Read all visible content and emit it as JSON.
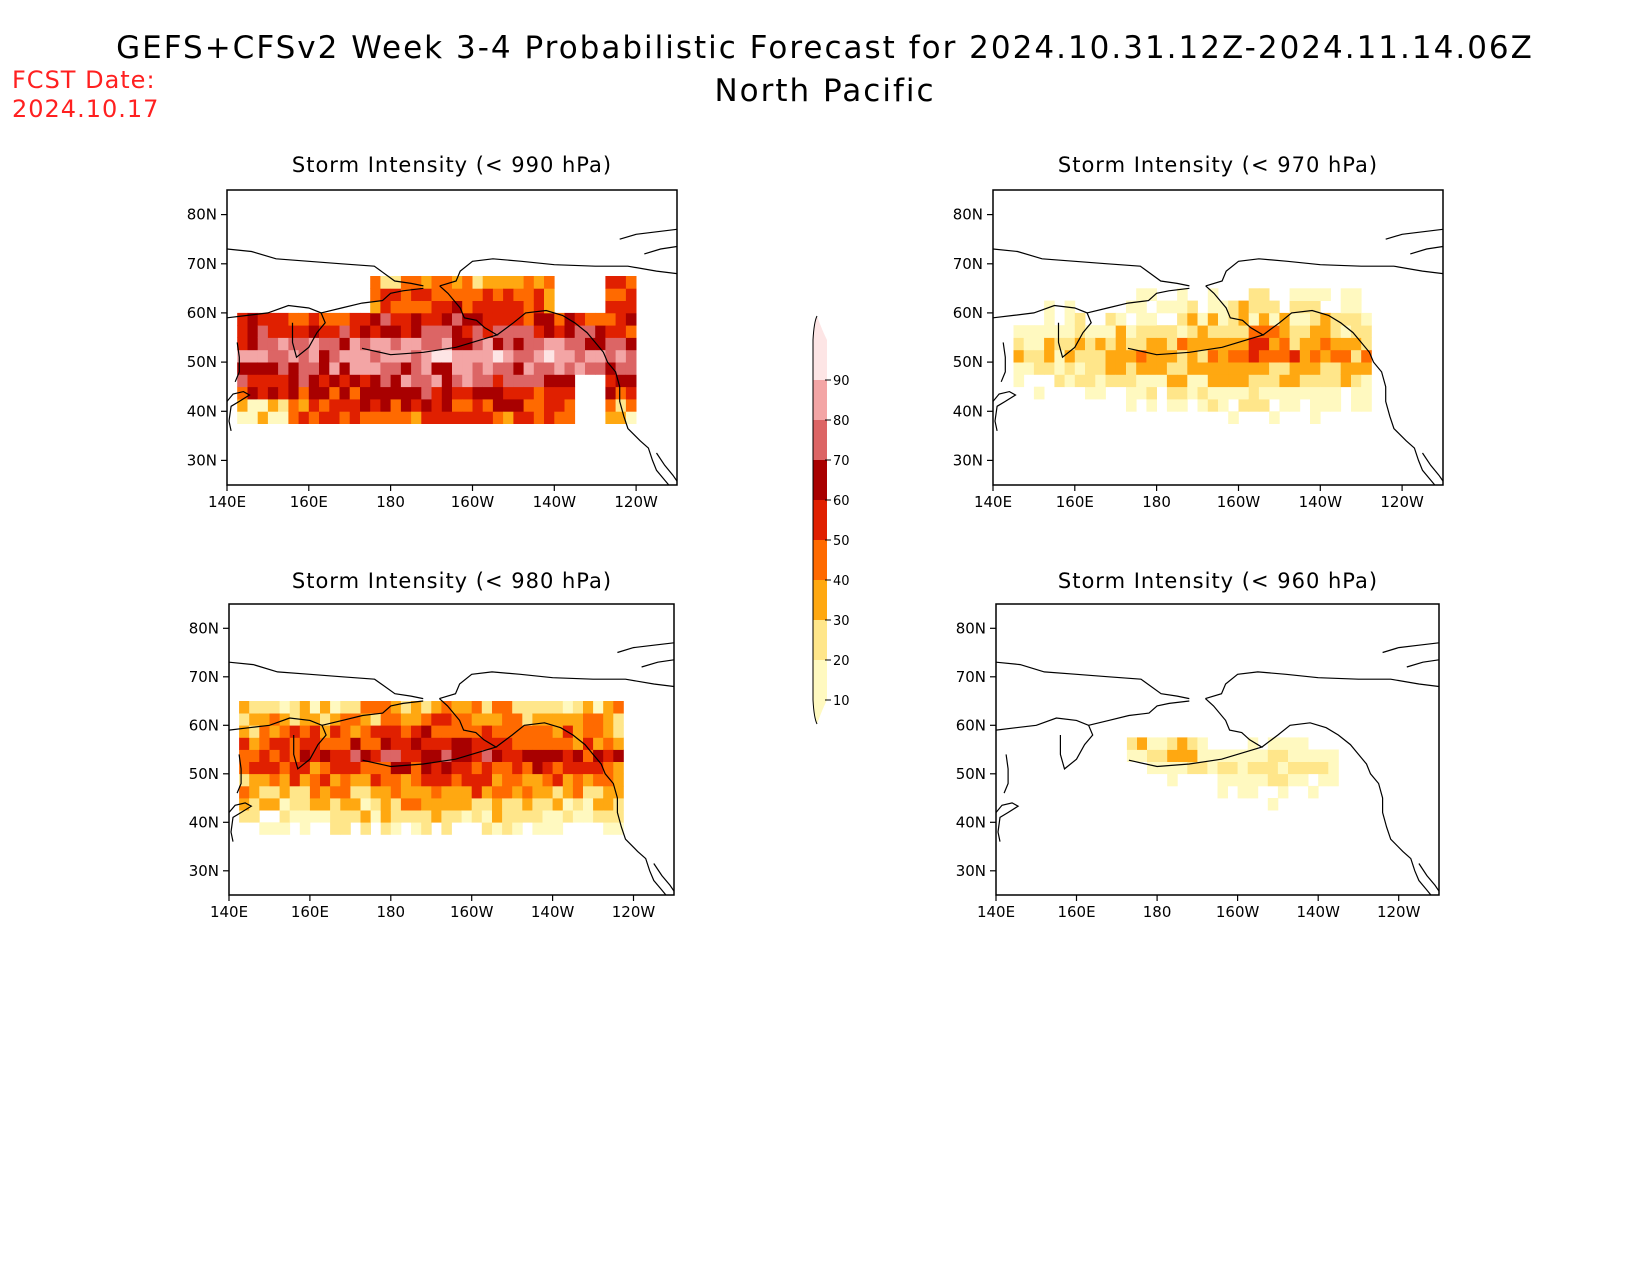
{
  "header": {
    "title": "GEFS+CFSv2 Week 3-4 Probabilistic Forecast for 2024.10.31.12Z-2024.11.14.06Z",
    "subtitle": "North Pacific",
    "fcst_label": "FCST Date:",
    "fcst_date": "2024.10.17"
  },
  "axes": {
    "lon_ticks": [
      "140E",
      "160E",
      "180",
      "160W",
      "140W",
      "120W"
    ],
    "lat_ticks": [
      "80N",
      "70N",
      "60N",
      "50N",
      "40N",
      "30N"
    ]
  },
  "panels": [
    {
      "id": "p990",
      "title": "Storm Intensity (< 990 hPa)",
      "threshold_hpa": 990,
      "coverage": "widespread",
      "peak_pct": 90
    },
    {
      "id": "p970",
      "title": "Storm Intensity (< 970 hPa)",
      "threshold_hpa": 970,
      "coverage": "moderate",
      "peak_pct": 60
    },
    {
      "id": "p980",
      "title": "Storm Intensity (< 980 hPa)",
      "threshold_hpa": 980,
      "coverage": "broad",
      "peak_pct": 80
    },
    {
      "id": "p960",
      "title": "Storm Intensity (< 960 hPa)",
      "threshold_hpa": 960,
      "coverage": "sparse",
      "peak_pct": 30
    }
  ],
  "colorbar": {
    "levels": [
      "10",
      "20",
      "30",
      "40",
      "50",
      "60",
      "70",
      "80",
      "90"
    ],
    "colors": [
      "#fff9c0",
      "#ffe68a",
      "#ffa811",
      "#ff6a00",
      "#e02000",
      "#a80000",
      "#dc6565",
      "#f3a5a5",
      "#fde5e5"
    ]
  }
}
